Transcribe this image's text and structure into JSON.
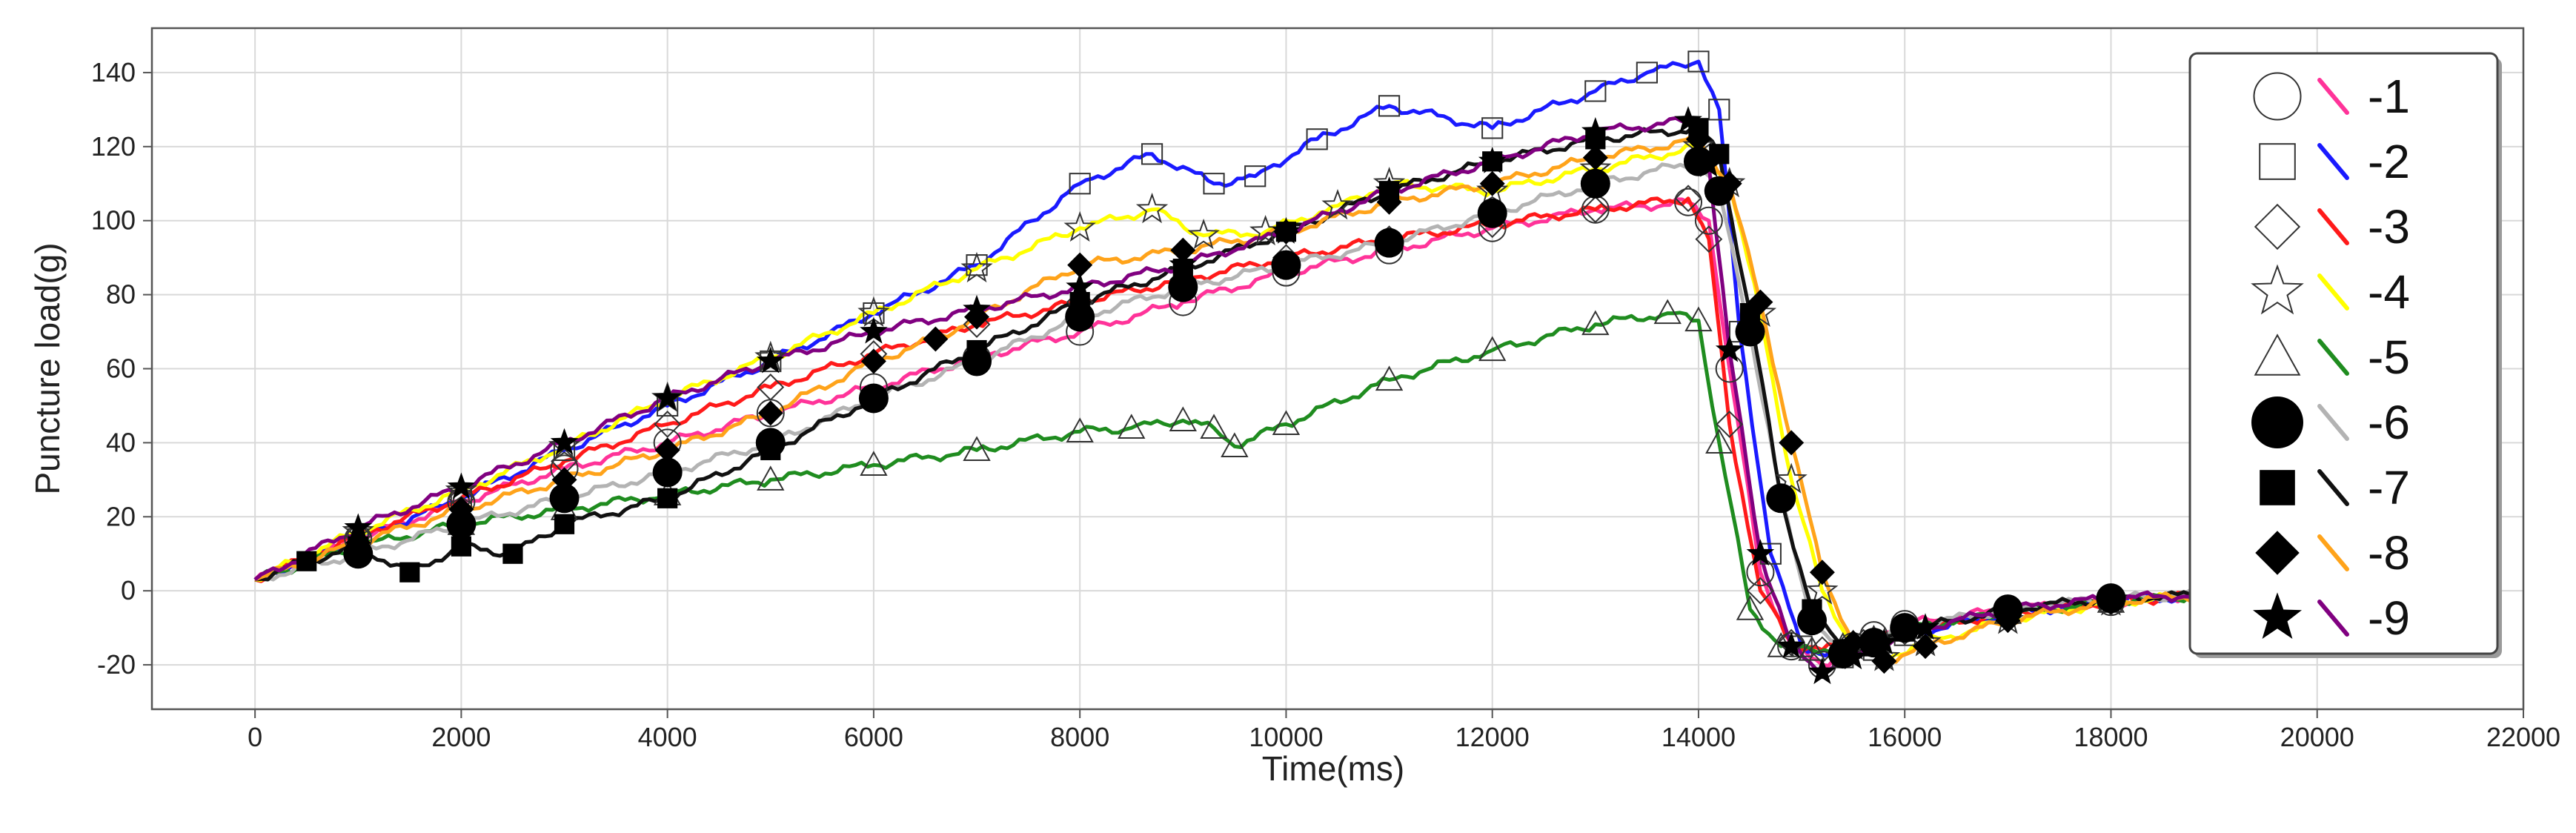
{
  "chart_data": {
    "type": "line",
    "title": "",
    "xlabel": "Time(ms)",
    "ylabel": "Puncture load(g)",
    "xlim": [
      -1000,
      22000
    ],
    "ylim": [
      -32,
      152
    ],
    "xticks": [
      0,
      2000,
      4000,
      6000,
      8000,
      10000,
      12000,
      14000,
      16000,
      18000,
      20000,
      22000
    ],
    "yticks": [
      -20,
      0,
      20,
      40,
      60,
      80,
      100,
      120,
      140
    ],
    "grid": true,
    "legend_position": "top-right",
    "series": [
      {
        "name": "-1",
        "color": "#ff3399",
        "marker": "circle-open",
        "x": [
          0,
          1000,
          2000,
          3000,
          4000,
          5000,
          6000,
          7000,
          8000,
          9000,
          10000,
          11000,
          12000,
          13000,
          13900,
          14100,
          14300,
          14600,
          14900,
          15200,
          15500,
          15700,
          16000,
          17000,
          18000,
          19000
        ],
        "y": [
          3,
          14,
          24,
          33,
          40,
          48,
          55,
          63,
          70,
          78,
          86,
          92,
          98,
          103,
          105,
          100,
          60,
          5,
          -15,
          -20,
          -15,
          -12,
          -9,
          -5,
          -3,
          -1
        ]
      },
      {
        "name": "-2",
        "color": "#1a1aff",
        "marker": "square-open",
        "x": [
          0,
          1000,
          2000,
          3000,
          4000,
          5000,
          6000,
          7000,
          8000,
          8700,
          9300,
          9700,
          10300,
          11000,
          12000,
          13000,
          13500,
          14000,
          14200,
          14400,
          14700,
          15000,
          15400,
          15700,
          16000,
          17000,
          18000,
          19000
        ],
        "y": [
          3,
          14,
          25,
          38,
          50,
          62,
          75,
          88,
          110,
          118,
          110,
          112,
          122,
          131,
          125,
          135,
          140,
          143,
          130,
          70,
          10,
          -15,
          -18,
          -16,
          -12,
          -6,
          -3,
          -1
        ]
      },
      {
        "name": "-3",
        "color": "#ff1a1a",
        "marker": "diamond-open",
        "x": [
          0,
          1000,
          2000,
          3000,
          4000,
          5000,
          6000,
          7000,
          8000,
          9000,
          10000,
          11000,
          12000,
          13000,
          13900,
          14100,
          14300,
          14600,
          14900,
          15200,
          15600,
          16000,
          17000,
          18000,
          19000
        ],
        "y": [
          3,
          15,
          25,
          35,
          45,
          55,
          64,
          72,
          78,
          84,
          90,
          95,
          99,
          103,
          106,
          95,
          45,
          0,
          -14,
          -16,
          -14,
          -11,
          -6,
          -3,
          -1
        ]
      },
      {
        "name": "-4",
        "color": "#ffff00",
        "marker": "star-open",
        "x": [
          0,
          1000,
          2000,
          3000,
          4000,
          5000,
          6000,
          7000,
          8000,
          8700,
          9200,
          9800,
          10500,
          11000,
          12000,
          13000,
          14000,
          14300,
          14600,
          14900,
          15200,
          15500,
          15800,
          16200,
          17000,
          18000,
          19000
        ],
        "y": [
          3,
          16,
          27,
          39,
          52,
          63,
          75,
          87,
          98,
          103,
          96,
          97,
          104,
          110,
          108,
          114,
          120,
          110,
          75,
          30,
          0,
          -15,
          -18,
          -14,
          -8,
          -3,
          -1
        ]
      },
      {
        "name": "-5",
        "color": "#1f8c1f",
        "marker": "triangle-open",
        "x": [
          0,
          1000,
          2000,
          3000,
          4000,
          5000,
          6000,
          7000,
          8000,
          8500,
          9000,
          9300,
          9500,
          10000,
          11000,
          12000,
          13000,
          13700,
          14000,
          14200,
          14500,
          14800,
          15100,
          15400,
          15700,
          16000,
          17000,
          18000,
          19000
        ],
        "y": [
          3,
          12,
          18,
          22,
          26,
          30,
          34,
          38,
          43,
          44,
          46,
          44,
          39,
          45,
          57,
          65,
          72,
          75,
          73,
          40,
          -5,
          -15,
          -16,
          -15,
          -13,
          -10,
          -6,
          -3,
          -1
        ]
      },
      {
        "name": "-6",
        "color": "#b3b3b3",
        "marker": "circle-filled",
        "x": [
          0,
          1000,
          2000,
          3000,
          4000,
          5000,
          6000,
          7000,
          8000,
          9000,
          10000,
          11000,
          12000,
          13000,
          14000,
          14200,
          14500,
          14800,
          15100,
          15400,
          15700,
          16000,
          17000,
          18000,
          19000
        ],
        "y": [
          3,
          10,
          18,
          25,
          32,
          40,
          52,
          62,
          74,
          82,
          88,
          94,
          102,
          110,
          116,
          108,
          70,
          25,
          -8,
          -17,
          -14,
          -10,
          -5,
          -2,
          -1
        ]
      },
      {
        "name": "-7",
        "color": "#111111",
        "marker": "square-filled",
        "x": [
          0,
          500,
          1000,
          1500,
          2000,
          2500,
          3000,
          4000,
          5000,
          6000,
          7000,
          8000,
          9000,
          10000,
          11000,
          12000,
          13000,
          14000,
          14200,
          14500,
          14800,
          15100,
          15400,
          15700,
          16000,
          17000,
          18000,
          19000
        ],
        "y": [
          3,
          8,
          12,
          5,
          12,
          10,
          18,
          25,
          38,
          52,
          65,
          78,
          87,
          97,
          108,
          116,
          122,
          125,
          118,
          75,
          25,
          -5,
          -16,
          -15,
          -11,
          -5,
          -2,
          -1
        ]
      },
      {
        "name": "-8",
        "color": "#ffa31a",
        "marker": "diamond-filled",
        "x": [
          0,
          1000,
          2000,
          3000,
          4000,
          5000,
          6000,
          6600,
          7000,
          8000,
          9000,
          10000,
          11000,
          12000,
          13000,
          14000,
          14300,
          14600,
          14900,
          15200,
          15500,
          15800,
          16200,
          17000,
          18000,
          19000
        ],
        "y": [
          3,
          13,
          22,
          30,
          38,
          48,
          62,
          68,
          74,
          88,
          92,
          97,
          105,
          110,
          117,
          122,
          110,
          78,
          40,
          5,
          -14,
          -19,
          -15,
          -8,
          -3,
          -1
        ]
      },
      {
        "name": "-9",
        "color": "#800080",
        "marker": "star-filled",
        "x": [
          0,
          1000,
          2000,
          3000,
          4000,
          5000,
          6000,
          7000,
          8000,
          9000,
          10000,
          11000,
          12000,
          13000,
          13900,
          14100,
          14300,
          14600,
          14900,
          15200,
          15500,
          15800,
          16200,
          17000,
          18000,
          19000
        ],
        "y": [
          3,
          17,
          28,
          40,
          52,
          62,
          70,
          76,
          82,
          88,
          97,
          108,
          116,
          124,
          127,
          115,
          65,
          10,
          -15,
          -22,
          -18,
          -14,
          -10,
          -5,
          -2,
          -1
        ]
      }
    ]
  }
}
